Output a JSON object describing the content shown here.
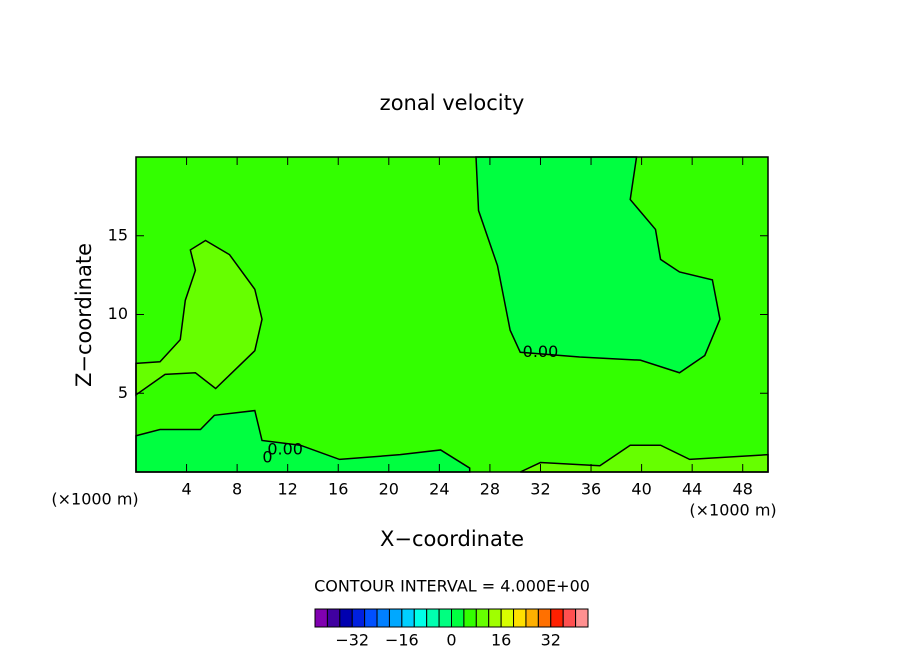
{
  "chart_data": {
    "type": "contour",
    "title": "zonal velocity",
    "x_label": "X−coordinate",
    "y_label": "Z−coordinate",
    "x_unit_left": "(×1000 m)",
    "x_unit_right": "(×1000 m)",
    "contour_interval_text": "CONTOUR INTERVAL = 4.000E+00",
    "xlim": [
      0,
      50
    ],
    "ylim": [
      0,
      20
    ],
    "xticks": [
      4,
      8,
      12,
      16,
      20,
      24,
      28,
      32,
      36,
      40,
      44,
      48
    ],
    "yticks": [
      5,
      10,
      15
    ],
    "background_color": "#33ff00",
    "regions": [
      {
        "color": "#00ff40",
        "x": [
          26.9,
          27.1,
          28.6,
          29.6,
          30.4,
          35.1,
          39.9,
          43.0,
          45.0,
          46.2,
          45.6,
          43.0,
          41.5,
          41.1,
          39.1,
          39.6
        ],
        "y": [
          20,
          16.6,
          13.1,
          9.0,
          7.6,
          7.3,
          7.1,
          6.3,
          7.4,
          9.7,
          12.2,
          12.7,
          13.5,
          15.4,
          17.3,
          20
        ]
      },
      {
        "color": "#66ff00",
        "x": [
          0,
          1.9,
          3.5,
          3.9,
          4.7,
          4.3,
          5.5,
          7.4,
          9.4,
          9.97,
          9.4,
          6.3,
          4.7,
          2.3,
          0
        ],
        "y": [
          6.9,
          7.0,
          8.4,
          10.9,
          12.8,
          14.1,
          14.7,
          13.8,
          11.6,
          9.7,
          7.7,
          5.3,
          6.3,
          6.2,
          4.9
        ]
      },
      {
        "color": "#00ff40",
        "x": [
          0,
          1.9,
          5.1,
          6.2,
          9.4,
          9.97,
          13,
          16.1,
          20.9,
          24.1,
          26.4,
          26.4,
          0
        ],
        "y": [
          2.3,
          2.7,
          2.7,
          3.6,
          3.9,
          2.0,
          1.7,
          0.8,
          1.1,
          1.4,
          0.25,
          0,
          0
        ]
      },
      {
        "color": "#66ff00",
        "x": [
          30.4,
          32,
          36.7,
          39.1,
          41.5,
          43.8,
          50,
          50
        ],
        "y": [
          0,
          0.6,
          0.4,
          1.7,
          1.7,
          0.8,
          1.1,
          0
        ]
      }
    ],
    "contour_labels": [
      {
        "text": "0.00",
        "x": 32,
        "y": 7.6
      },
      {
        "text": "0.00",
        "x": 11.8,
        "y": 1.4
      },
      {
        "text": "0",
        "x": 10.4,
        "y": 0.9
      }
    ],
    "colorbar": {
      "clim": [
        -44,
        44
      ],
      "ticks": [
        -32,
        -16,
        0,
        16,
        32
      ],
      "colors": [
        "#8000b0",
        "#4000a0",
        "#0000b0",
        "#0020e0",
        "#0050ff",
        "#0080ff",
        "#00a8ff",
        "#00d0ff",
        "#00ffe8",
        "#00ffb0",
        "#00ff80",
        "#00ff40",
        "#33ff00",
        "#66ff00",
        "#a0ff00",
        "#d8ff00",
        "#ffe000",
        "#ffb000",
        "#ff7000",
        "#ff2000",
        "#ff5050",
        "#ff9090"
      ]
    }
  }
}
